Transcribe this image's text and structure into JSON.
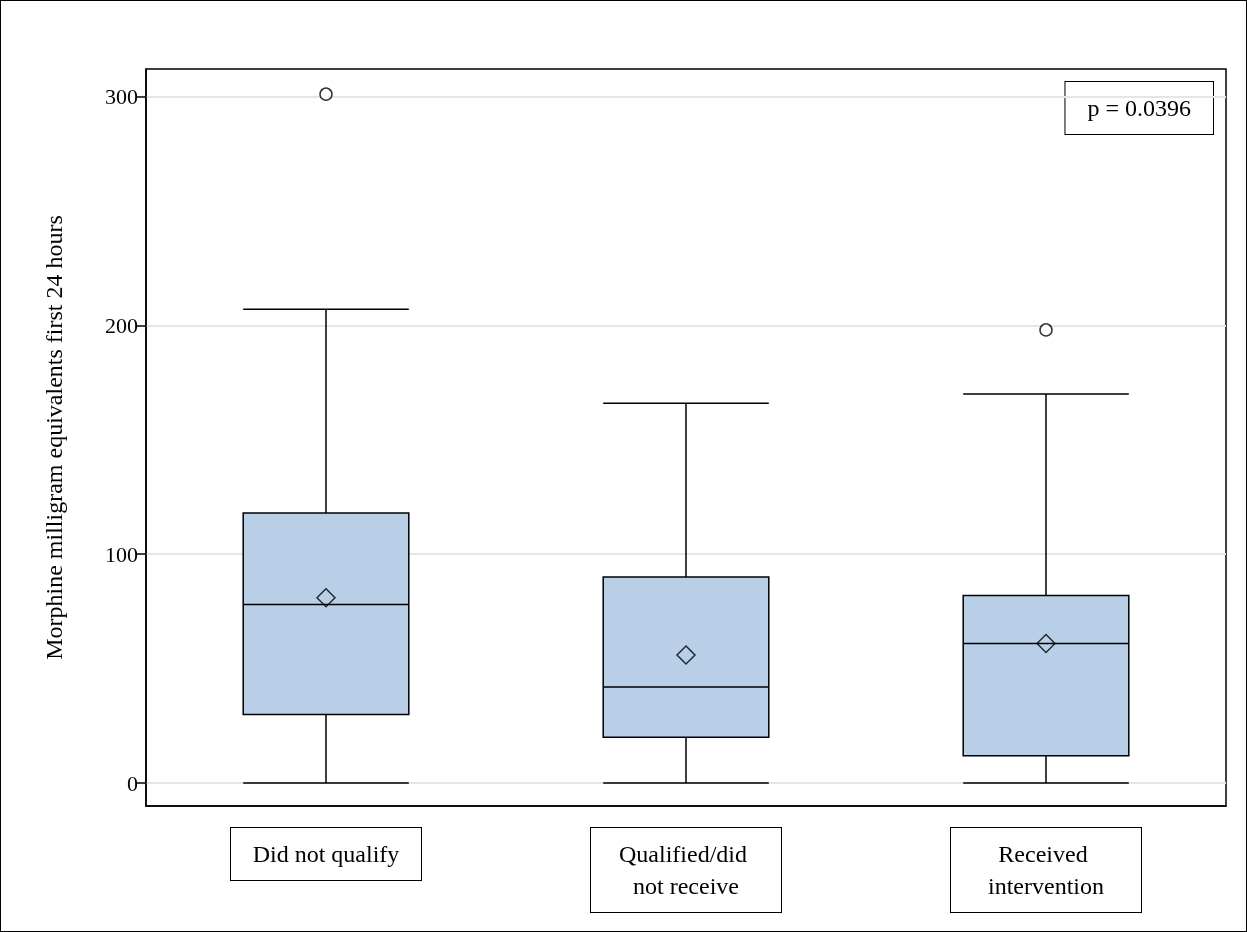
{
  "chart_data": {
    "type": "box",
    "ylabel": "Morphine milligram equivalents first 24 hours",
    "categories": [
      "Did not qualify",
      "Qualified/did not receive",
      "Received intervention"
    ],
    "color": "#b9cfe7",
    "boxes": [
      {
        "low": 0,
        "q1": 30,
        "median": 78,
        "q3": 118,
        "high": 207,
        "mean": 81,
        "outliers": [
          301
        ]
      },
      {
        "low": 0,
        "q1": 20,
        "median": 42,
        "q3": 90,
        "high": 166,
        "mean": 56
      },
      {
        "low": 0,
        "q1": 12,
        "median": 61,
        "q3": 82,
        "high": 170,
        "mean": 61,
        "outliers": [
          198
        ]
      }
    ],
    "ylim": [
      -10,
      312
    ],
    "yticks": [
      0,
      100,
      200,
      300
    ],
    "grid": "y",
    "annotations": [
      "p = 0.0396"
    ]
  }
}
